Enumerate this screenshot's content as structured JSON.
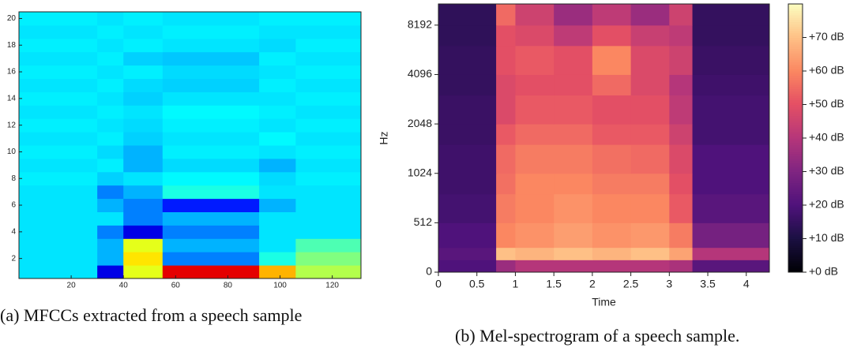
{
  "chart_data": [
    {
      "type": "heatmap",
      "caption": "(a) MFCCs extracted from a speech sample",
      "colormap": "jet",
      "clim": [
        0,
        1
      ],
      "xlim": [
        0,
        131
      ],
      "ylim": [
        0.5,
        20.5
      ],
      "xticks": [
        20,
        40,
        60,
        80,
        100,
        120
      ],
      "yticks": [
        2,
        4,
        6,
        8,
        10,
        12,
        14,
        16,
        18,
        20
      ],
      "x": [
        0,
        30,
        40,
        55,
        92,
        106,
        131
      ],
      "y": [
        0.5,
        1.5,
        2.5,
        3.5,
        4.5,
        5.5,
        6.5,
        7.5,
        8.5,
        9.5,
        10.5,
        11.5,
        12.5,
        13.5,
        14.5,
        15.5,
        16.5,
        17.5,
        18.5,
        19.5,
        20.5
      ],
      "values": [
        [
          0.35,
          0.1,
          0.6,
          0.9,
          0.7,
          0.55
        ],
        [
          0.35,
          0.3,
          0.65,
          0.25,
          0.4,
          0.5
        ],
        [
          0.35,
          0.3,
          0.6,
          0.3,
          0.35,
          0.45
        ],
        [
          0.35,
          0.25,
          0.1,
          0.25,
          0.35,
          0.35
        ],
        [
          0.35,
          0.35,
          0.25,
          0.3,
          0.35,
          0.35
        ],
        [
          0.35,
          0.3,
          0.25,
          0.15,
          0.3,
          0.35
        ],
        [
          0.35,
          0.25,
          0.3,
          0.4,
          0.35,
          0.35
        ],
        [
          0.36,
          0.33,
          0.35,
          0.37,
          0.34,
          0.36
        ],
        [
          0.35,
          0.36,
          0.3,
          0.34,
          0.3,
          0.35
        ],
        [
          0.36,
          0.34,
          0.3,
          0.36,
          0.35,
          0.36
        ],
        [
          0.35,
          0.36,
          0.33,
          0.35,
          0.37,
          0.35
        ],
        [
          0.36,
          0.35,
          0.34,
          0.36,
          0.35,
          0.36
        ],
        [
          0.35,
          0.36,
          0.35,
          0.37,
          0.36,
          0.35
        ],
        [
          0.36,
          0.35,
          0.33,
          0.35,
          0.35,
          0.36
        ],
        [
          0.35,
          0.36,
          0.34,
          0.33,
          0.36,
          0.35
        ],
        [
          0.36,
          0.35,
          0.36,
          0.34,
          0.35,
          0.36
        ],
        [
          0.35,
          0.36,
          0.33,
          0.32,
          0.36,
          0.35
        ],
        [
          0.36,
          0.35,
          0.36,
          0.35,
          0.34,
          0.36
        ],
        [
          0.35,
          0.36,
          0.35,
          0.36,
          0.35,
          0.35
        ],
        [
          0.36,
          0.35,
          0.36,
          0.35,
          0.36,
          0.36
        ]
      ]
    },
    {
      "type": "heatmap",
      "caption": "(b) Mel-spectrogram of a speech sample.",
      "colormap": "magma",
      "clim": [
        0,
        80
      ],
      "xlabel": "Time",
      "ylabel": "Hz",
      "yscale": "symlog",
      "linthresh": 512,
      "xlim": [
        0,
        4.3
      ],
      "ylim": [
        0,
        11025
      ],
      "xticks": [
        0,
        0.5,
        1,
        1.5,
        2,
        2.5,
        3,
        3.5,
        4
      ],
      "yticks": [
        0,
        512,
        1024,
        2048,
        4096,
        8192
      ],
      "cticks": [
        {
          "value": 0,
          "label": "+0 dB"
        },
        {
          "value": 10,
          "label": "+10 dB"
        },
        {
          "value": 20,
          "label": "+20 dB"
        },
        {
          "value": 30,
          "label": "+30 dB"
        },
        {
          "value": 40,
          "label": "+40 dB"
        },
        {
          "value": 50,
          "label": "+50 dB"
        },
        {
          "value": 60,
          "label": "+60 dB"
        },
        {
          "value": 70,
          "label": "+70 dB"
        }
      ],
      "x": [
        0,
        0.75,
        1,
        1.5,
        2,
        2.5,
        3,
        3.3,
        4.3
      ],
      "y": [
        0,
        128,
        256,
        512,
        768,
        1024,
        1536,
        2048,
        3072,
        4096,
        6144,
        8192,
        11025
      ],
      "values": [
        [
          20,
          35,
          40,
          40,
          40,
          40,
          38,
          22
        ],
        [
          22,
          70,
          68,
          70,
          68,
          70,
          65,
          40
        ],
        [
          20,
          60,
          62,
          64,
          62,
          63,
          58,
          28
        ],
        [
          18,
          58,
          60,
          62,
          60,
          60,
          52,
          22
        ],
        [
          17,
          56,
          60,
          60,
          58,
          58,
          50,
          20
        ],
        [
          17,
          55,
          58,
          58,
          56,
          55,
          48,
          20
        ],
        [
          16,
          52,
          55,
          55,
          52,
          52,
          45,
          18
        ],
        [
          16,
          48,
          52,
          52,
          50,
          50,
          42,
          18
        ],
        [
          15,
          48,
          50,
          50,
          55,
          48,
          40,
          17
        ],
        [
          15,
          50,
          52,
          50,
          60,
          48,
          45,
          16
        ],
        [
          14,
          50,
          48,
          42,
          50,
          44,
          42,
          15
        ],
        [
          14,
          55,
          45,
          35,
          42,
          35,
          45,
          15
        ]
      ]
    }
  ]
}
